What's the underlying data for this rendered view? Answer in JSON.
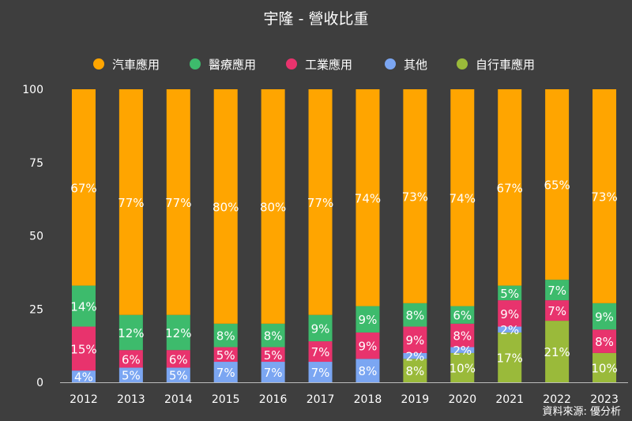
{
  "title": "宇隆 - 營收比重",
  "source": "資料來源: 優分析",
  "chart_data": {
    "type": "bar",
    "stacked": true,
    "title": "宇隆 - 營收比重",
    "xlabel": "",
    "ylabel": "",
    "ylim": [
      0,
      100
    ],
    "yticks": [
      0,
      25,
      50,
      75,
      100
    ],
    "grid": false,
    "legend_position": "top",
    "categories": [
      "2012",
      "2013",
      "2014",
      "2015",
      "2016",
      "2017",
      "2018",
      "2019",
      "2020",
      "2021",
      "2022",
      "2023"
    ],
    "series": [
      {
        "name": "自行車應用",
        "color": "#9aba3a",
        "values": [
          0,
          0,
          0,
          0,
          0,
          0,
          0,
          8,
          10,
          17,
          21,
          10
        ],
        "labels": [
          "",
          "",
          "",
          "",
          "",
          "",
          "",
          "8%",
          "10%",
          "17%",
          "21%",
          "10%"
        ]
      },
      {
        "name": "其他",
        "color": "#7ba6f2",
        "values": [
          4,
          5,
          5,
          7,
          7,
          7,
          8,
          2,
          2,
          2,
          0,
          0
        ],
        "labels": [
          "4%",
          "5%",
          "5%",
          "7%",
          "7%",
          "7%",
          "8%",
          "2%",
          "2%",
          "2%",
          "",
          ""
        ]
      },
      {
        "name": "工業應用",
        "color": "#e8336d",
        "values": [
          15,
          6,
          6,
          5,
          5,
          7,
          9,
          9,
          8,
          9,
          7,
          8
        ],
        "labels": [
          "15%",
          "6%",
          "6%",
          "5%",
          "5%",
          "7%",
          "9%",
          "9%",
          "8%",
          "9%",
          "7%",
          "8%"
        ]
      },
      {
        "name": "醫療應用",
        "color": "#3dbb6c",
        "values": [
          14,
          12,
          12,
          8,
          8,
          9,
          9,
          8,
          6,
          5,
          7,
          9
        ],
        "labels": [
          "14%",
          "12%",
          "12%",
          "8%",
          "8%",
          "9%",
          "9%",
          "8%",
          "6%",
          "5%",
          "7%",
          "9%"
        ]
      },
      {
        "name": "汽車應用",
        "color": "#ffa500",
        "values": [
          67,
          77,
          77,
          80,
          80,
          77,
          74,
          73,
          74,
          67,
          65,
          73
        ],
        "labels": [
          "67%",
          "77%",
          "77%",
          "80%",
          "80%",
          "77%",
          "74%",
          "73%",
          "74%",
          "67%",
          "65%",
          "73%"
        ]
      }
    ],
    "legend_order": [
      "汽車應用",
      "醫療應用",
      "工業應用",
      "其他",
      "自行車應用"
    ]
  }
}
